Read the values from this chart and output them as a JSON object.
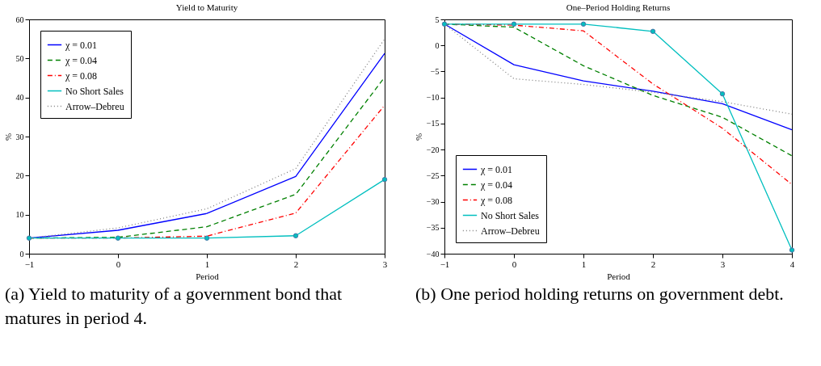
{
  "chart_data": [
    {
      "type": "line",
      "title": "Yield to Maturity",
      "xlabel": "Period",
      "ylabel": "%",
      "x": [
        -1,
        0,
        1,
        2,
        3
      ],
      "xlim": [
        -1,
        3
      ],
      "xticks": [
        -1,
        0,
        1,
        2,
        3
      ],
      "ylim": [
        0,
        60
      ],
      "yticks": [
        0,
        10,
        20,
        30,
        40,
        50,
        60
      ],
      "legend": "top left",
      "grid": false,
      "series": [
        {
          "name": "χ = 0.01",
          "color": "#0000ff",
          "line_style": "solid",
          "values": [
            4,
            6,
            10.3,
            19.8,
            51.3
          ]
        },
        {
          "name": "χ = 0.04",
          "color": "#008000",
          "line_style": "dashed",
          "values": [
            4,
            4.2,
            6.9,
            15.2,
            45.2
          ]
        },
        {
          "name": "χ = 0.08",
          "color": "#ff0000",
          "line_style": "dashdot",
          "values": [
            4,
            4,
            4.5,
            10.4,
            38
          ]
        },
        {
          "name": "No Short Sales",
          "color": "#00bfbf",
          "line_style": "solid",
          "marker": "circle",
          "values": [
            4,
            4,
            4,
            4.6,
            19
          ]
        },
        {
          "name": "Arrow–Debreu",
          "color": "#808080",
          "line_style": "dotted",
          "values": [
            4,
            6.6,
            11.5,
            21.8,
            55
          ]
        }
      ],
      "annotations": [
        "(a) Yield to maturity of a government bond that matures in period 4."
      ]
    },
    {
      "type": "line",
      "title": "One–Period Holding Returns",
      "xlabel": "Period",
      "ylabel": "%",
      "x": [
        -1,
        0,
        1,
        2,
        3,
        4
      ],
      "xlim": [
        -1,
        4
      ],
      "xticks": [
        -1,
        0,
        1,
        2,
        3,
        4
      ],
      "ylim": [
        -40,
        5
      ],
      "yticks": [
        -40,
        -35,
        -30,
        -25,
        -20,
        -15,
        -10,
        -5,
        0,
        5
      ],
      "legend": "bottom left",
      "grid": false,
      "series": [
        {
          "name": "χ = 0.01",
          "color": "#0000ff",
          "line_style": "solid",
          "values": [
            4.1,
            -3.7,
            -6.8,
            -8.8,
            -11.2,
            -16.2
          ]
        },
        {
          "name": "χ = 0.04",
          "color": "#008000",
          "line_style": "dashed",
          "values": [
            4.1,
            3.5,
            -3.9,
            -9.6,
            -13.8,
            -21.2
          ]
        },
        {
          "name": "χ = 0.08",
          "color": "#ff0000",
          "line_style": "dashdot",
          "values": [
            4.1,
            3.9,
            2.8,
            -7.4,
            -15.9,
            -26.7
          ]
        },
        {
          "name": "No Short Sales",
          "color": "#00bfbf",
          "line_style": "solid",
          "marker": "circle",
          "values": [
            4.1,
            4.1,
            4.1,
            2.7,
            -9.3,
            -39.3
          ]
        },
        {
          "name": "Arrow–Debreu",
          "color": "#808080",
          "line_style": "dotted",
          "values": [
            4.1,
            -6.4,
            -7.5,
            -9,
            -10.8,
            -13.2
          ]
        }
      ],
      "annotations": [
        "(b) One period holding returns on government debt."
      ]
    }
  ]
}
